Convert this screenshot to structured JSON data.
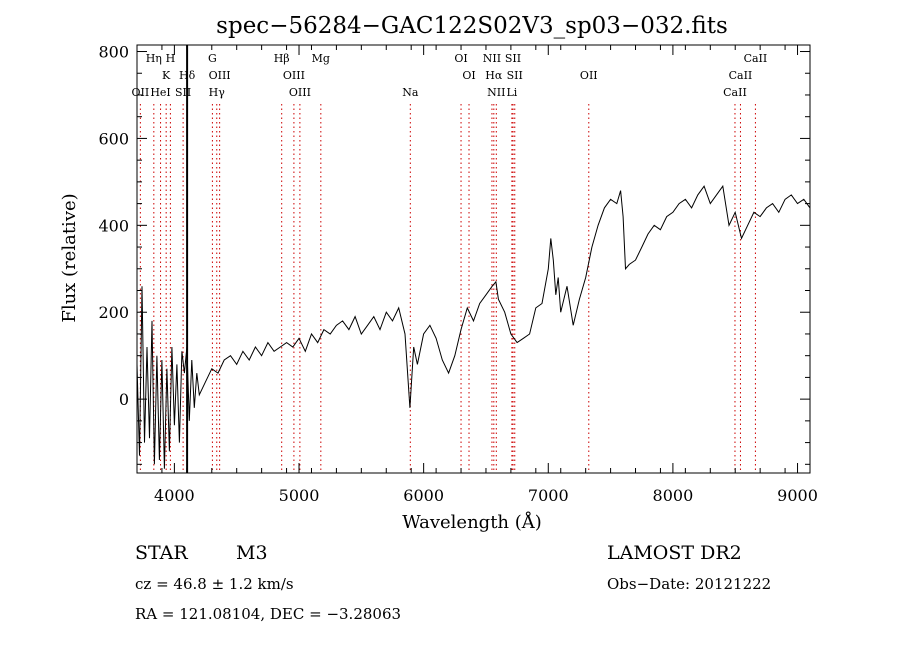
{
  "chart_data": {
    "type": "line",
    "title": "spec−56284−GAC122S02V3_sp03−032.fits",
    "xlabel": "Wavelength (Å)",
    "ylabel": "Flux (relative)",
    "xlim": [
      3700,
      9100
    ],
    "ylim": [
      -170,
      815
    ],
    "xticks": [
      4000,
      5000,
      6000,
      7000,
      8000,
      9000
    ],
    "yticks": [
      0,
      200,
      400,
      600,
      800
    ],
    "line_color": "#000000",
    "marker_color": "#cc0000",
    "series": [
      {
        "x": [
          3700,
          3720,
          3740,
          3760,
          3780,
          3800,
          3820,
          3840,
          3860,
          3880,
          3900,
          3920,
          3940,
          3960,
          3980,
          4000,
          4020,
          4040,
          4060,
          4080,
          4100,
          4120,
          4140,
          4160,
          4180,
          4200,
          4250,
          4300,
          4350,
          4400,
          4450,
          4500,
          4550,
          4600,
          4650,
          4700,
          4750,
          4800,
          4850,
          4900,
          4950,
          5000,
          5050,
          5100,
          5150,
          5200,
          5250,
          5300,
          5350,
          5400,
          5450,
          5500,
          5550,
          5600,
          5650,
          5700,
          5750,
          5800,
          5850,
          5890,
          5920,
          5950,
          6000,
          6050,
          6100,
          6150,
          6200,
          6250,
          6300,
          6350,
          6400,
          6450,
          6500,
          6550,
          6580,
          6600,
          6650,
          6700,
          6750,
          6800,
          6850,
          6900,
          6950,
          7000,
          7020,
          7040,
          7060,
          7080,
          7100,
          7150,
          7200,
          7250,
          7300,
          7350,
          7400,
          7450,
          7500,
          7550,
          7580,
          7600,
          7620,
          7650,
          7700,
          7750,
          7800,
          7850,
          7900,
          7950,
          8000,
          8050,
          8100,
          8150,
          8200,
          8250,
          8300,
          8350,
          8400,
          8450,
          8500,
          8550,
          8600,
          8650,
          8700,
          8750,
          8800,
          8850,
          8900,
          8950,
          9000,
          9050,
          9100
        ],
        "y": [
          80,
          -130,
          260,
          -100,
          120,
          -90,
          180,
          -150,
          100,
          -140,
          90,
          -160,
          70,
          -120,
          120,
          -60,
          80,
          -100,
          110,
          60,
          120,
          -50,
          90,
          -20,
          60,
          10,
          40,
          70,
          60,
          90,
          100,
          80,
          110,
          90,
          120,
          100,
          130,
          110,
          120,
          130,
          120,
          140,
          110,
          150,
          130,
          160,
          150,
          170,
          180,
          160,
          190,
          150,
          170,
          190,
          160,
          200,
          180,
          210,
          150,
          -20,
          120,
          80,
          150,
          170,
          140,
          90,
          60,
          100,
          160,
          210,
          180,
          220,
          240,
          260,
          270,
          230,
          200,
          150,
          130,
          140,
          150,
          210,
          220,
          300,
          370,
          320,
          240,
          280,
          200,
          260,
          170,
          230,
          280,
          350,
          400,
          440,
          460,
          450,
          480,
          420,
          300,
          310,
          320,
          350,
          380,
          400,
          390,
          420,
          430,
          450,
          460,
          440,
          470,
          490,
          450,
          470,
          490,
          400,
          430,
          370,
          400,
          430,
          420,
          440,
          450,
          430,
          460,
          470,
          450,
          460,
          440
        ]
      }
    ],
    "line_ids": [
      {
        "label": "Hη",
        "x": 3835,
        "row": 0
      },
      {
        "label": "H",
        "x": 3968,
        "row": 0
      },
      {
        "label": "K",
        "x": 3934,
        "row": 1
      },
      {
        "label": "Hδ",
        "x": 4102,
        "row": 1
      },
      {
        "label": "OII",
        "x": 3727,
        "row": 2
      },
      {
        "label": "HeI",
        "x": 3889,
        "row": 2
      },
      {
        "label": "SII",
        "x": 4070,
        "row": 2
      },
      {
        "label": "G",
        "x": 4305,
        "row": 0
      },
      {
        "label": "OIII",
        "x": 4363,
        "row": 1
      },
      {
        "label": "Hγ",
        "x": 4340,
        "row": 2
      },
      {
        "label": "Hβ",
        "x": 4861,
        "row": 0
      },
      {
        "label": "OIII",
        "x": 4959,
        "row": 1
      },
      {
        "label": "OIII",
        "x": 5007,
        "row": 2
      },
      {
        "label": "Mg",
        "x": 5175,
        "row": 0
      },
      {
        "label": "Na",
        "x": 5893,
        "row": 2
      },
      {
        "label": "OI",
        "x": 6300,
        "row": 0
      },
      {
        "label": "OI",
        "x": 6364,
        "row": 1
      },
      {
        "label": "NII",
        "x": 6548,
        "row": 0
      },
      {
        "label": "SII",
        "x": 6717,
        "row": 0
      },
      {
        "label": "Hα",
        "x": 6563,
        "row": 1
      },
      {
        "label": "SII",
        "x": 6731,
        "row": 1
      },
      {
        "label": "NII",
        "x": 6583,
        "row": 2
      },
      {
        "label": "Li",
        "x": 6708,
        "row": 2
      },
      {
        "label": "OII",
        "x": 7325,
        "row": 1
      },
      {
        "label": "CaII",
        "x": 8662,
        "row": 0
      },
      {
        "label": "CaII",
        "x": 8542,
        "row": 1
      },
      {
        "label": "CaII",
        "x": 8498,
        "row": 2
      }
    ],
    "solid_marker_x": 4102
  },
  "info": {
    "class_label": "STAR",
    "subclass": "M3",
    "survey": "LAMOST DR2",
    "cz": "cz = 46.8 ± 1.2 km/s",
    "obs_date": "Obs−Date: 20121222",
    "coords": "RA = 121.08104, DEC =  −3.28063"
  }
}
